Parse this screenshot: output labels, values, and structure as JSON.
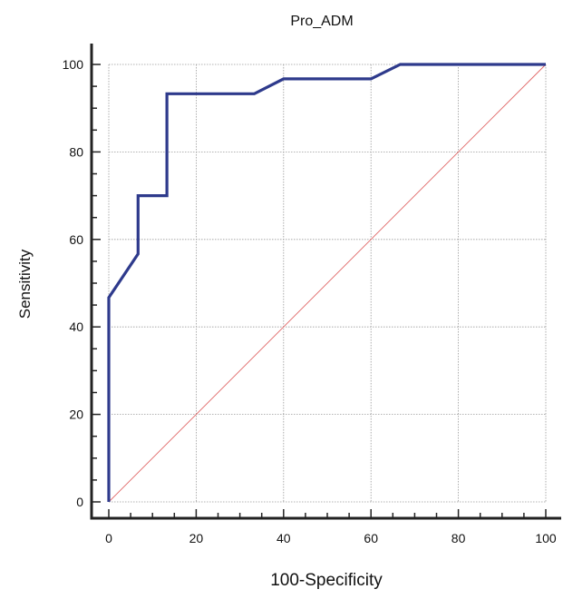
{
  "chart_data": {
    "type": "line",
    "title": "Pro_ADM",
    "xlabel": "100-Specificity",
    "ylabel": "Sensitivity",
    "xlim": [
      0,
      100
    ],
    "ylim": [
      0,
      100
    ],
    "x_ticks": [
      "0",
      "20",
      "40",
      "60",
      "80",
      "100"
    ],
    "y_ticks": [
      "0",
      "20",
      "40",
      "60",
      "80",
      "100"
    ],
    "grid": true,
    "series": [
      {
        "color": "#2e3a8c",
        "x": [
          0,
          0,
          6.7,
          6.7,
          13.3,
          13.3,
          33.3,
          40,
          60,
          66.7,
          100
        ],
        "y": [
          0,
          46.7,
          56.7,
          70,
          70,
          93.3,
          93.3,
          96.7,
          96.7,
          100,
          100
        ]
      },
      {
        "color": "#e06666",
        "x": [
          0,
          100
        ],
        "y": [
          0,
          100
        ]
      }
    ]
  }
}
